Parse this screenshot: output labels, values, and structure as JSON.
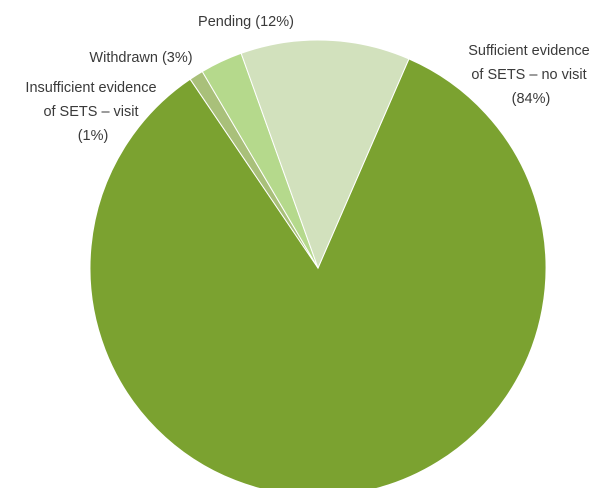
{
  "chart_data": {
    "type": "pie",
    "title": "",
    "slices": [
      {
        "label_lines": [
          "Sufficient evidence",
          "of SETS – no visit",
          "(84%)"
        ],
        "name": "Sufficient evidence of SETS – no visit",
        "value": 84,
        "color": "#7ba230"
      },
      {
        "label_lines": [
          "Insufficient evidence",
          "of SETS – visit",
          "(1%)"
        ],
        "name": "Insufficient evidence of SETS – visit",
        "value": 1,
        "color": "#a9c07a"
      },
      {
        "label_lines": [
          "Withdrawn (3%)"
        ],
        "name": "Withdrawn",
        "value": 3,
        "color": "#b5d98c"
      },
      {
        "label_lines": [
          "Pending (12%)"
        ],
        "name": "Pending",
        "value": 12,
        "color": "#d2e1bd"
      }
    ],
    "legend": "none (labels next to slices)"
  }
}
